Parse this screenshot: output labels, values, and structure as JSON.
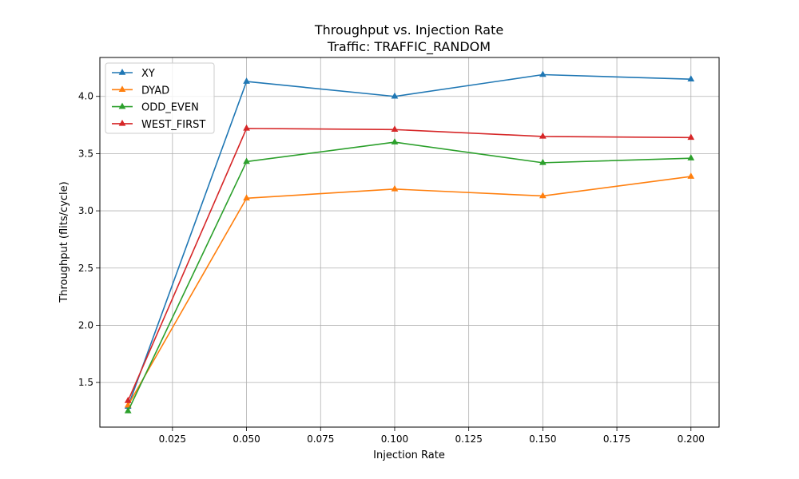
{
  "chart_data": {
    "type": "line",
    "title": "Throughput vs. Injection Rate",
    "subtitle": "Traffic: TRAFFIC_RANDOM",
    "xlabel": "Injection Rate",
    "ylabel": "Throughput (flits/cycle)",
    "x": [
      0.01,
      0.05,
      0.1,
      0.15,
      0.2
    ],
    "xlim": [
      0.0005,
      0.2095
    ],
    "ylim": [
      1.11,
      4.34
    ],
    "xticks": [
      0.025,
      0.05,
      0.075,
      0.1,
      0.125,
      0.15,
      0.175,
      0.2
    ],
    "xtick_labels": [
      "0.025",
      "0.050",
      "0.075",
      "0.100",
      "0.125",
      "0.150",
      "0.175",
      "0.200"
    ],
    "yticks": [
      1.5,
      2.0,
      2.5,
      3.0,
      3.5,
      4.0
    ],
    "ytick_labels": [
      "1.5",
      "2.0",
      "2.5",
      "3.0",
      "3.5",
      "4.0"
    ],
    "grid": true,
    "legend_position": "top-left",
    "marker": "triangle-up",
    "series": [
      {
        "name": "XY",
        "color": "#1f77b4",
        "values": [
          1.29,
          4.13,
          4.0,
          4.19,
          4.15
        ]
      },
      {
        "name": "DYAD",
        "color": "#ff7f0e",
        "values": [
          1.3,
          3.11,
          3.19,
          3.13,
          3.3
        ]
      },
      {
        "name": "ODD_EVEN",
        "color": "#2ca02c",
        "values": [
          1.25,
          3.43,
          3.6,
          3.42,
          3.46
        ]
      },
      {
        "name": "WEST_FIRST",
        "color": "#d62728",
        "values": [
          1.34,
          3.72,
          3.71,
          3.65,
          3.64
        ]
      }
    ]
  }
}
